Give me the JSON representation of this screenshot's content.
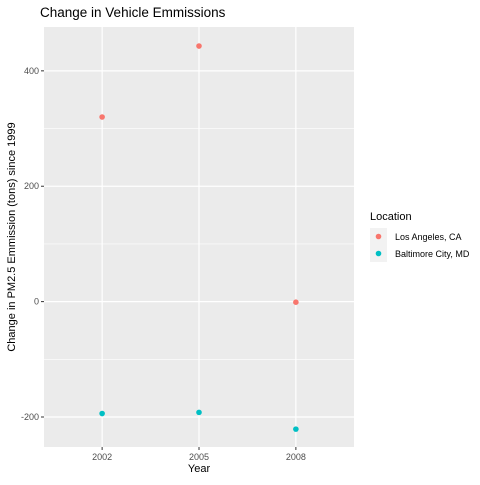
{
  "chart_data": {
    "type": "scatter",
    "title": "Change in Vehicle Emmissions",
    "xlabel": "Year",
    "ylabel": "Change in PM2.5 Emmission (tons) since 1999",
    "x_categories": [
      "2002",
      "2005",
      "2008"
    ],
    "y_ticks": [
      -200,
      0,
      200,
      400
    ],
    "ylim": [
      -252,
      476
    ],
    "grid": true,
    "legend": {
      "title": "Location",
      "position": "right"
    },
    "series": [
      {
        "name": "Los Angeles, CA",
        "color": "#F8766D",
        "values": [
          320,
          443,
          -1
        ]
      },
      {
        "name": "Baltimore City, MD",
        "color": "#00BFC4",
        "values": [
          -194,
          -192,
          -221
        ]
      }
    ]
  }
}
